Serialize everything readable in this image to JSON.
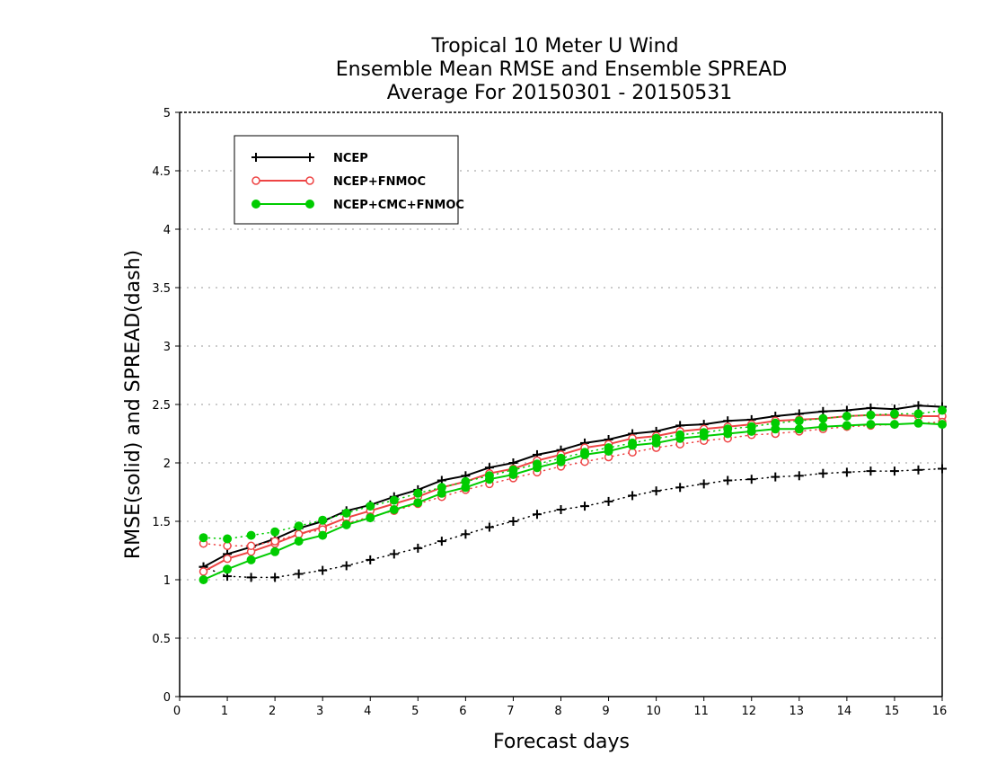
{
  "chart_data": {
    "type": "line",
    "title_lines": [
      "Tropical 10 Meter U Wind",
      "Ensemble Mean RMSE and Ensemble SPREAD",
      "Average For 20150301 - 20150531"
    ],
    "xlabel": "Forecast days",
    "ylabel": "RMSE(solid) and SPREAD(dash)",
    "xlim": [
      0,
      16
    ],
    "ylim": [
      0,
      5
    ],
    "x_ticks": [
      "0",
      "1",
      "2",
      "3",
      "4",
      "5",
      "6",
      "7",
      "8",
      "9",
      "10",
      "11",
      "12",
      "13",
      "14",
      "15",
      "16"
    ],
    "y_ticks": [
      "0",
      "0.5",
      "1",
      "1.5",
      "2",
      "2.5",
      "3",
      "3.5",
      "4",
      "4.5",
      "5"
    ],
    "grid": "horizontal-dotted",
    "legend_position": "top-left",
    "x": [
      0.5,
      1,
      1.5,
      2,
      2.5,
      3,
      3.5,
      4,
      4.5,
      5,
      5.5,
      6,
      6.5,
      7,
      7.5,
      8,
      8.5,
      9,
      9.5,
      10,
      10.5,
      11,
      11.5,
      12,
      12.5,
      13,
      13.5,
      14,
      14.5,
      15,
      15.5,
      16
    ],
    "series": [
      {
        "name": "NCEP",
        "color": "#000000",
        "marker": "plus",
        "rmse": [
          1.11,
          1.22,
          1.28,
          1.35,
          1.44,
          1.5,
          1.59,
          1.64,
          1.71,
          1.77,
          1.85,
          1.89,
          1.96,
          2.0,
          2.07,
          2.11,
          2.17,
          2.2,
          2.25,
          2.27,
          2.32,
          2.33,
          2.36,
          2.37,
          2.4,
          2.42,
          2.44,
          2.45,
          2.47,
          2.46,
          2.49,
          2.48
        ],
        "spread": [
          1.11,
          1.03,
          1.02,
          1.02,
          1.05,
          1.08,
          1.12,
          1.17,
          1.22,
          1.27,
          1.33,
          1.39,
          1.45,
          1.5,
          1.56,
          1.6,
          1.63,
          1.67,
          1.72,
          1.76,
          1.79,
          1.82,
          1.85,
          1.86,
          1.88,
          1.89,
          1.91,
          1.92,
          1.93,
          1.93,
          1.94,
          1.95
        ]
      },
      {
        "name": "NCEP+FNMOC",
        "color": "#ee4444",
        "marker": "open-circle",
        "rmse": [
          1.07,
          1.18,
          1.24,
          1.31,
          1.39,
          1.45,
          1.53,
          1.59,
          1.65,
          1.71,
          1.79,
          1.84,
          1.91,
          1.95,
          2.02,
          2.07,
          2.13,
          2.16,
          2.21,
          2.23,
          2.27,
          2.29,
          2.31,
          2.33,
          2.36,
          2.37,
          2.38,
          2.4,
          2.41,
          2.41,
          2.4,
          2.4
        ],
        "spread": [
          1.31,
          1.29,
          1.29,
          1.33,
          1.39,
          1.43,
          1.48,
          1.54,
          1.59,
          1.65,
          1.71,
          1.77,
          1.82,
          1.87,
          1.92,
          1.97,
          2.01,
          2.05,
          2.09,
          2.13,
          2.16,
          2.19,
          2.21,
          2.24,
          2.25,
          2.27,
          2.29,
          2.31,
          2.32,
          2.33,
          2.34,
          2.35
        ]
      },
      {
        "name": "NCEP+CMC+FNMOC",
        "color": "#00cc00",
        "marker": "filled-circle",
        "rmse": [
          1.0,
          1.09,
          1.17,
          1.24,
          1.33,
          1.38,
          1.47,
          1.53,
          1.6,
          1.66,
          1.74,
          1.79,
          1.86,
          1.9,
          1.96,
          2.01,
          2.07,
          2.1,
          2.15,
          2.17,
          2.21,
          2.23,
          2.25,
          2.27,
          2.29,
          2.29,
          2.31,
          2.32,
          2.33,
          2.33,
          2.34,
          2.33
        ],
        "spread": [
          1.36,
          1.35,
          1.38,
          1.41,
          1.46,
          1.51,
          1.57,
          1.63,
          1.68,
          1.74,
          1.79,
          1.84,
          1.89,
          1.94,
          1.99,
          2.04,
          2.09,
          2.13,
          2.17,
          2.21,
          2.24,
          2.26,
          2.29,
          2.31,
          2.34,
          2.36,
          2.38,
          2.4,
          2.41,
          2.42,
          2.42,
          2.45
        ]
      }
    ]
  }
}
